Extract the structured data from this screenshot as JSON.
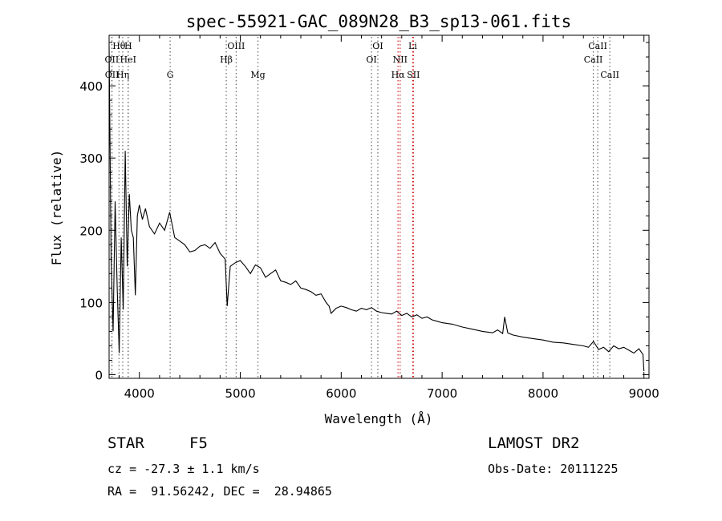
{
  "chart_data": {
    "type": "line",
    "title": "spec-55921-GAC_089N28_B3_sp13-061.fits",
    "xlabel": "Wavelength (Å)",
    "ylabel": "Flux (relative)",
    "xlim": [
      3700,
      9050
    ],
    "ylim": [
      -5,
      470
    ],
    "xticks": [
      4000,
      5000,
      6000,
      7000,
      8000,
      9000
    ],
    "yticks": [
      0,
      100,
      200,
      300,
      400
    ],
    "grid": false,
    "series": [
      {
        "color": "#000000",
        "x": [
          3700,
          3720,
          3740,
          3760,
          3780,
          3800,
          3820,
          3840,
          3860,
          3880,
          3900,
          3920,
          3940,
          3960,
          3980,
          4000,
          4030,
          4060,
          4100,
          4150,
          4200,
          4250,
          4300,
          4350,
          4400,
          4450,
          4500,
          4550,
          4600,
          4650,
          4700,
          4750,
          4800,
          4850,
          4870,
          4900,
          4950,
          5000,
          5050,
          5100,
          5150,
          5200,
          5250,
          5300,
          5350,
          5400,
          5450,
          5500,
          5550,
          5600,
          5650,
          5700,
          5750,
          5800,
          5850,
          5880,
          5900,
          5950,
          6000,
          6050,
          6100,
          6150,
          6200,
          6250,
          6300,
          6350,
          6400,
          6450,
          6500,
          6550,
          6600,
          6650,
          6700,
          6750,
          6800,
          6850,
          6900,
          6950,
          7000,
          7100,
          7200,
          7300,
          7400,
          7500,
          7550,
          7600,
          7620,
          7650,
          7700,
          7800,
          7900,
          8000,
          8100,
          8200,
          8300,
          8400,
          8450,
          8500,
          8550,
          8600,
          8650,
          8700,
          8750,
          8800,
          8850,
          8900,
          8950,
          8990,
          9000
        ],
        "y": [
          455,
          160,
          60,
          240,
          120,
          30,
          190,
          90,
          310,
          150,
          250,
          200,
          190,
          110,
          220,
          235,
          215,
          230,
          205,
          195,
          210,
          200,
          225,
          190,
          185,
          180,
          170,
          172,
          178,
          180,
          175,
          183,
          168,
          160,
          95,
          150,
          155,
          158,
          150,
          140,
          152,
          148,
          135,
          140,
          145,
          130,
          128,
          125,
          130,
          120,
          118,
          115,
          110,
          112,
          100,
          95,
          85,
          92,
          95,
          93,
          90,
          88,
          92,
          90,
          93,
          88,
          86,
          85,
          84,
          88,
          82,
          85,
          80,
          83,
          78,
          80,
          76,
          74,
          72,
          70,
          66,
          63,
          60,
          58,
          62,
          57,
          80,
          58,
          55,
          52,
          50,
          48,
          45,
          44,
          42,
          40,
          38,
          46,
          35,
          38,
          32,
          40,
          36,
          38,
          34,
          30,
          36,
          28,
          5
        ]
      }
    ],
    "line_labels": [
      {
        "text": "Hθ",
        "x": 3798,
        "line_x": 3798,
        "row": 1,
        "line_color": "#666666"
      },
      {
        "text": "H",
        "x": 3889,
        "line_x": 3889,
        "row": 1,
        "line_color": "#666666"
      },
      {
        "text": "OII",
        "x": 3727,
        "line_x": 3727,
        "row": 2,
        "line_color": "#666666"
      },
      {
        "text": "HeI",
        "x": 3889,
        "line_x": 3889,
        "row": 2,
        "line_color": "#666666"
      },
      {
        "text": "OII",
        "x": 3729,
        "line_x": 3729,
        "row": 3,
        "line_color": "#666666"
      },
      {
        "text": "Hη",
        "x": 3835,
        "line_x": 3835,
        "row": 3,
        "line_color": "#666666"
      },
      {
        "text": "G",
        "x": 4305,
        "line_x": 4305,
        "row": 3,
        "line_color": "#666666"
      },
      {
        "text": "OIII",
        "x": 4959,
        "line_x": 4959,
        "row": 1,
        "line_color": "#666666"
      },
      {
        "text": "Hβ",
        "x": 4861,
        "line_x": 4861,
        "row": 2,
        "line_color": "#666666"
      },
      {
        "text": "Mg",
        "x": 5175,
        "line_x": 5175,
        "row": 3,
        "line_color": "#666666"
      },
      {
        "text": "OI",
        "x": 6363,
        "line_x": 6363,
        "row": 1,
        "line_color": "#666666"
      },
      {
        "text": "Li",
        "x": 6708,
        "line_x": 6708,
        "row": 1,
        "line_color": "#d22020"
      },
      {
        "text": "OI",
        "x": 6300,
        "line_x": 6300,
        "row": 2,
        "line_color": "#666666"
      },
      {
        "text": "NII",
        "x": 6584,
        "line_x": 6584,
        "row": 2,
        "line_color": "#d22020"
      },
      {
        "text": "Hα",
        "x": 6563,
        "line_x": 6563,
        "row": 3,
        "line_color": "#d22020"
      },
      {
        "text": "SII",
        "x": 6716,
        "line_x": 6716,
        "row": 3,
        "line_color": "#d22020"
      },
      {
        "text": "CaII",
        "x": 8542,
        "line_x": 8542,
        "row": 1,
        "line_color": "#666666"
      },
      {
        "text": "CaII",
        "x": 8498,
        "line_x": 8498,
        "row": 2,
        "line_color": "#666666"
      },
      {
        "text": "CaII",
        "x": 8662,
        "line_x": 8662,
        "row": 3,
        "line_color": "#666666"
      }
    ]
  },
  "info": {
    "class": "STAR",
    "subclass": "F5",
    "survey": "LAMOST DR2",
    "cz": "cz = -27.3 ± 1.1 km/s",
    "obs_date": "Obs-Date: 20111225",
    "coords": "RA =  91.56242, DEC =  28.94865"
  }
}
